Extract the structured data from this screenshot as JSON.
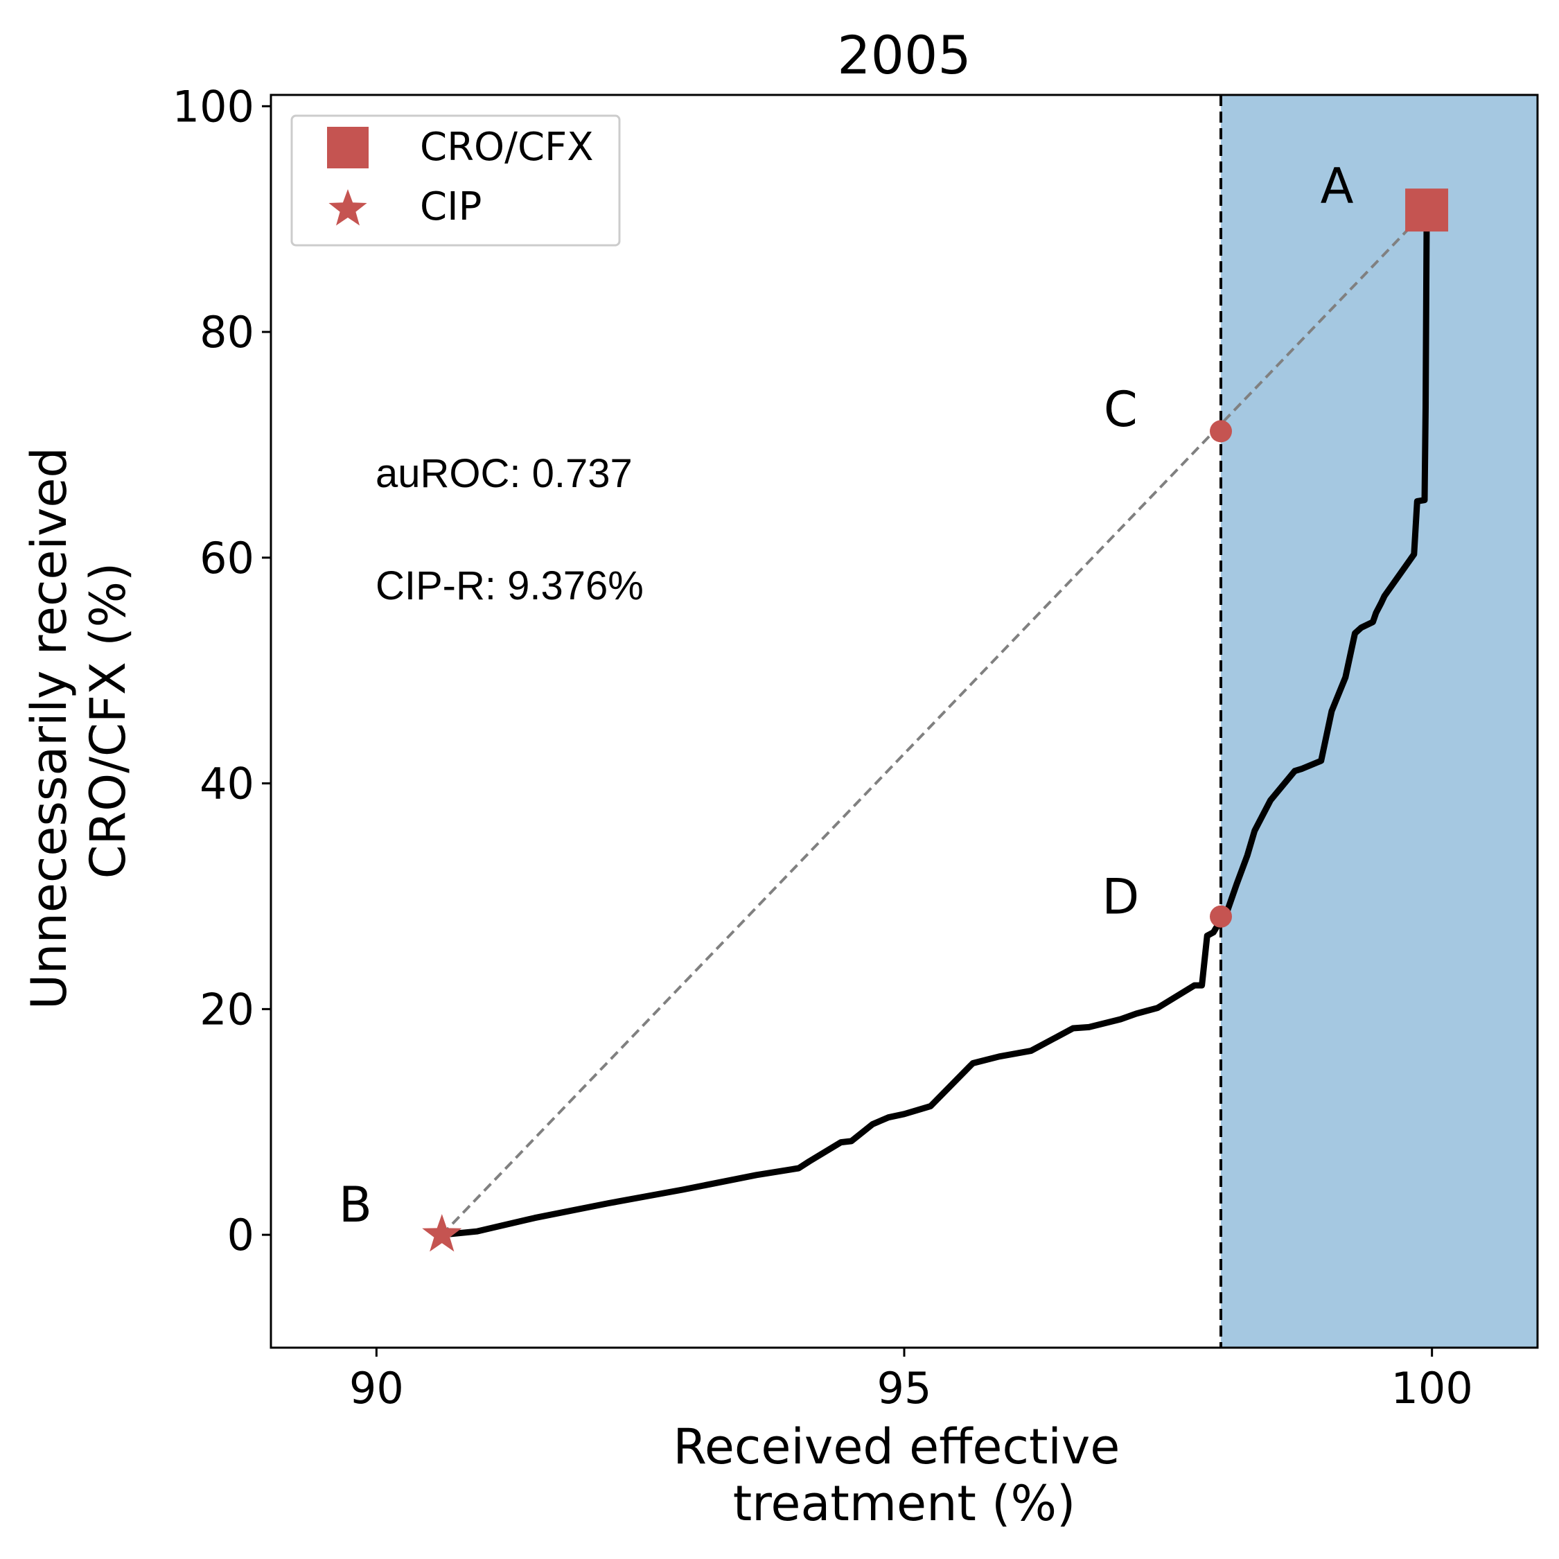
{
  "chart_data": {
    "type": "line",
    "title": "2005",
    "xlabel_lines": [
      "Received effective",
      "treatment (%)"
    ],
    "ylabel_lines": [
      "Unnecessarily received",
      "CRO/CFX (%)"
    ],
    "xlim": [
      89.0,
      101.0
    ],
    "ylim": [
      -10,
      101
    ],
    "xticks": [
      90,
      95,
      100
    ],
    "yticks": [
      0,
      20,
      40,
      60,
      80,
      100
    ],
    "shaded_region": {
      "x_from": 98.0,
      "x_to": 101.0,
      "color": "#a5c8e1"
    },
    "threshold_line_x": 98.0,
    "curve": {
      "color": "#000000",
      "x": [
        90.62,
        90.95,
        91.5,
        92.2,
        92.9,
        93.6,
        93.8,
        94.0,
        94.1,
        94.4,
        94.5,
        94.7,
        94.85,
        95.0,
        95.25,
        95.65,
        95.9,
        96.2,
        96.6,
        96.75,
        97.05,
        97.2,
        97.4,
        97.75,
        97.82,
        97.87,
        97.93,
        98.0,
        98.05,
        98.15,
        98.25,
        98.32,
        98.47,
        98.7,
        98.77,
        98.95,
        99.05,
        99.18,
        99.27,
        99.33,
        99.44,
        99.47,
        99.52,
        99.55,
        99.83,
        99.86,
        99.93,
        99.94,
        99.95
      ],
      "y": [
        0,
        0.3,
        1.5,
        2.8,
        4.0,
        5.3,
        5.6,
        5.9,
        6.5,
        8.2,
        8.3,
        9.8,
        10.4,
        10.7,
        11.4,
        15.2,
        15.8,
        16.3,
        18.3,
        18.4,
        19.1,
        19.6,
        20.1,
        22.1,
        22.1,
        26.5,
        26.8,
        27.9,
        28.4,
        31.1,
        33.6,
        35.8,
        38.5,
        41.1,
        41.3,
        42.0,
        46.4,
        49.4,
        53.3,
        53.8,
        54.3,
        55.1,
        56.0,
        56.6,
        60.3,
        65.0,
        65.1,
        73.3,
        90.8
      ]
    },
    "connector_line": {
      "color": "#808080",
      "style": "dashed",
      "from": [
        90.62,
        0
      ],
      "to": [
        99.95,
        90.8
      ]
    },
    "markers": [
      {
        "name": "CRO/CFX",
        "shape": "square",
        "x": 99.95,
        "y": 90.8,
        "color": "#c55451"
      },
      {
        "name": "CIP",
        "shape": "star",
        "x": 90.62,
        "y": 0,
        "color": "#c55451"
      }
    ],
    "points": [
      {
        "label": "C",
        "x": 98.0,
        "y": 71.2,
        "color": "#c55451"
      },
      {
        "label": "D",
        "x": 98.0,
        "y": 28.2,
        "color": "#c55451"
      }
    ],
    "point_labels": [
      {
        "label": "A",
        "x": 99.1,
        "y": 93.0
      },
      {
        "label": "B",
        "x": 89.8,
        "y": 2.7
      },
      {
        "label": "C",
        "x": 97.05,
        "y": 73.2
      },
      {
        "label": "D",
        "x": 97.05,
        "y": 30.0
      }
    ],
    "legend": {
      "position": "top-left",
      "entries": [
        "CRO/CFX",
        "CIP"
      ]
    },
    "annotations": [
      "auROC: 0.737",
      "CIP-R: 9.376%"
    ]
  }
}
